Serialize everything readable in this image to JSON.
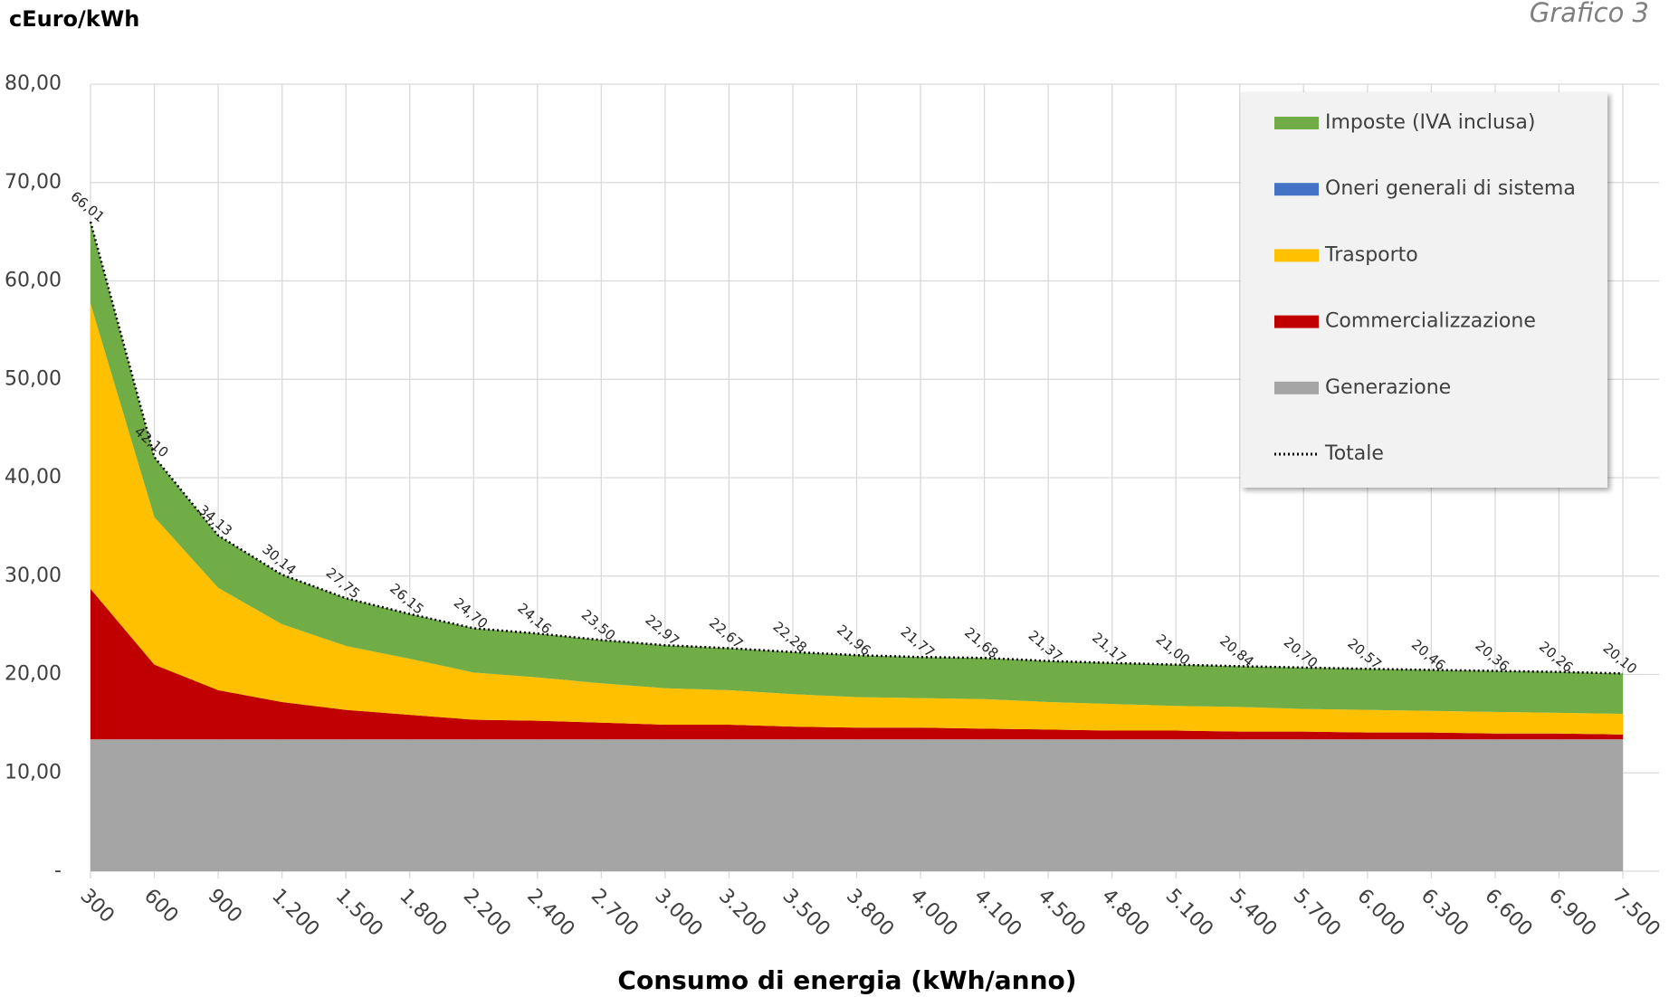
{
  "chart_data": {
    "type": "stacked-area",
    "title": "Grafico 3",
    "y_label": "cEuro/kWh",
    "x_label": "Consumo di energia (kWh/anno)",
    "categories": [
      "300",
      "600",
      "900",
      "1.200",
      "1.500",
      "1.800",
      "2.200",
      "2.400",
      "2.700",
      "3.000",
      "3.200",
      "3.500",
      "3.800",
      "4.000",
      "4.100",
      "4.500",
      "4.800",
      "5.100",
      "5.400",
      "5.700",
      "6.000",
      "6.300",
      "6.600",
      "6.900",
      "7.500"
    ],
    "series": [
      {
        "name": "Generazione",
        "color": "#a5a5a5",
        "values": [
          13.4,
          13.4,
          13.4,
          13.4,
          13.4,
          13.4,
          13.4,
          13.4,
          13.4,
          13.4,
          13.4,
          13.4,
          13.4,
          13.4,
          13.4,
          13.4,
          13.4,
          13.4,
          13.4,
          13.4,
          13.4,
          13.4,
          13.4,
          13.4,
          13.4
        ]
      },
      {
        "name": "Commercializzazione",
        "color": "#c00000",
        "values": [
          15.3,
          7.6,
          5.0,
          3.8,
          3.0,
          2.5,
          2.0,
          1.9,
          1.7,
          1.5,
          1.5,
          1.3,
          1.2,
          1.2,
          1.1,
          1.0,
          0.9,
          0.9,
          0.8,
          0.8,
          0.7,
          0.7,
          0.6,
          0.6,
          0.5
        ]
      },
      {
        "name": "Trasporto",
        "color": "#ffc000",
        "values": [
          29.0,
          15.0,
          10.4,
          7.9,
          6.5,
          5.7,
          4.8,
          4.4,
          4.0,
          3.7,
          3.5,
          3.3,
          3.1,
          3.0,
          3.0,
          2.8,
          2.7,
          2.5,
          2.5,
          2.3,
          2.3,
          2.2,
          2.2,
          2.1,
          2.1
        ]
      },
      {
        "name": "Oneri generali di sistema",
        "color": "#4472c4",
        "values": [
          0,
          0,
          0,
          0,
          0,
          0,
          0,
          0,
          0,
          0,
          0,
          0,
          0,
          0,
          0,
          0,
          0,
          0,
          0,
          0,
          0,
          0,
          0,
          0,
          0
        ]
      },
      {
        "name": "Imposte (IVA inclusa)",
        "color": "#70ad47",
        "values": [
          8.31,
          6.1,
          5.33,
          5.04,
          4.85,
          4.55,
          4.5,
          4.46,
          4.4,
          4.37,
          4.27,
          4.28,
          4.26,
          4.17,
          4.18,
          4.17,
          4.17,
          4.2,
          4.14,
          4.2,
          4.17,
          4.16,
          4.16,
          4.16,
          4.1
        ]
      }
    ],
    "total": {
      "name": "Totale",
      "color": "#000000",
      "values": [
        66.01,
        42.1,
        34.13,
        30.14,
        27.75,
        26.15,
        24.7,
        24.16,
        23.5,
        22.97,
        22.67,
        22.28,
        21.96,
        21.77,
        21.68,
        21.37,
        21.17,
        21.0,
        20.84,
        20.7,
        20.57,
        20.46,
        20.36,
        20.26,
        20.1
      ],
      "value_labels": [
        "66,01",
        "42,10",
        "34,13",
        "30,14",
        "27,75",
        "26,15",
        "24,70",
        "24,16",
        "23,50",
        "22,97",
        "22,67",
        "22,28",
        "21,96",
        "21,77",
        "21,68",
        "21,37",
        "21,17",
        "21,00",
        "20,84",
        "20,70",
        "20,57",
        "20,46",
        "20,36",
        "20,26",
        "20,10"
      ]
    },
    "ylim": [
      0,
      80
    ],
    "yticks": [
      {
        "value": 0,
        "label": "-"
      },
      {
        "value": 10,
        "label": "10,00"
      },
      {
        "value": 20,
        "label": "20,00"
      },
      {
        "value": 30,
        "label": "30,00"
      },
      {
        "value": 40,
        "label": "40,00"
      },
      {
        "value": 50,
        "label": "50,00"
      },
      {
        "value": 60,
        "label": "60,00"
      },
      {
        "value": 70,
        "label": "70,00"
      },
      {
        "value": 80,
        "label": "80,00"
      }
    ],
    "grid": true,
    "legend": "top-right"
  }
}
